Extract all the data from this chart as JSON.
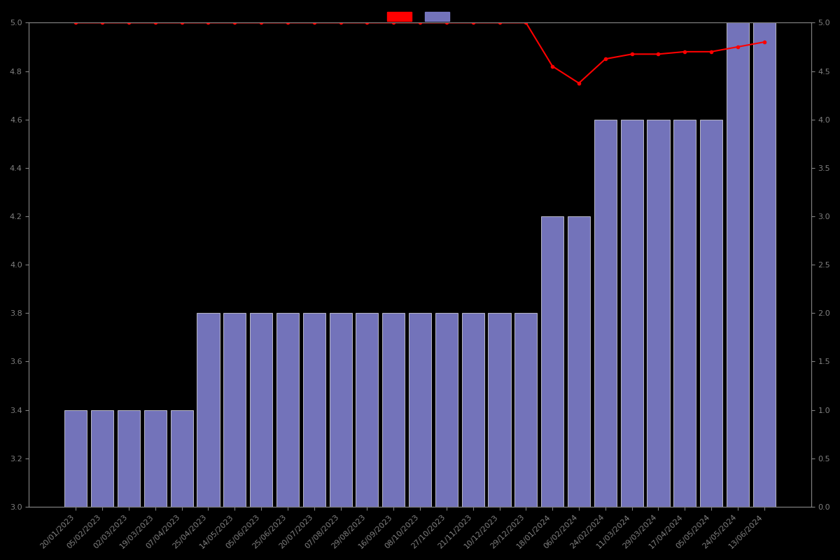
{
  "dates": [
    "20/01/2023",
    "05/02/2023",
    "02/03/2023",
    "19/03/2023",
    "07/04/2023",
    "25/04/2023",
    "14/05/2023",
    "05/06/2023",
    "25/06/2023",
    "20/07/2023",
    "07/08/2023",
    "29/08/2023",
    "16/09/2023",
    "08/10/2023",
    "27/10/2023",
    "21/11/2023",
    "10/12/2023",
    "29/12/2023",
    "18/01/2024",
    "06/02/2024",
    "24/02/2024",
    "11/03/2024",
    "29/03/2024",
    "17/04/2024",
    "05/05/2024",
    "24/05/2024",
    "13/06/2024"
  ],
  "bar_heights": [
    0.4,
    0.4,
    0.4,
    0.4,
    0.4,
    0.8,
    0.8,
    0.8,
    0.8,
    0.8,
    0.8,
    0.8,
    0.8,
    0.8,
    0.8,
    0.8,
    0.8,
    0.8,
    1.2,
    1.2,
    1.6,
    1.6,
    1.6,
    1.6,
    1.6,
    2.0,
    2.0
  ],
  "line_values": [
    5.0,
    5.0,
    5.0,
    5.0,
    5.0,
    5.0,
    5.0,
    5.0,
    5.0,
    5.0,
    5.0,
    5.0,
    5.0,
    5.0,
    5.0,
    5.0,
    5.0,
    5.0,
    4.82,
    4.75,
    4.85,
    4.87,
    4.87,
    4.88,
    4.88,
    4.9,
    4.92
  ],
  "bar_color": "#8080d0",
  "line_color": "#ff0000",
  "background_color": "#000000",
  "text_color": "#808080",
  "ylim_left": [
    3.0,
    5.0
  ],
  "ylim_right": [
    0.0,
    5.0
  ],
  "yticks_left": [
    3.0,
    3.2,
    3.4,
    3.6,
    3.8,
    4.0,
    4.2,
    4.4,
    4.6,
    4.8,
    5.0
  ],
  "yticks_right": [
    0,
    0.5,
    1.0,
    1.5,
    2.0,
    2.5,
    3.0,
    3.5,
    4.0,
    4.5,
    5.0
  ],
  "bar_bottom": 3.0,
  "figsize": [
    12.0,
    8.0
  ],
  "dpi": 100
}
